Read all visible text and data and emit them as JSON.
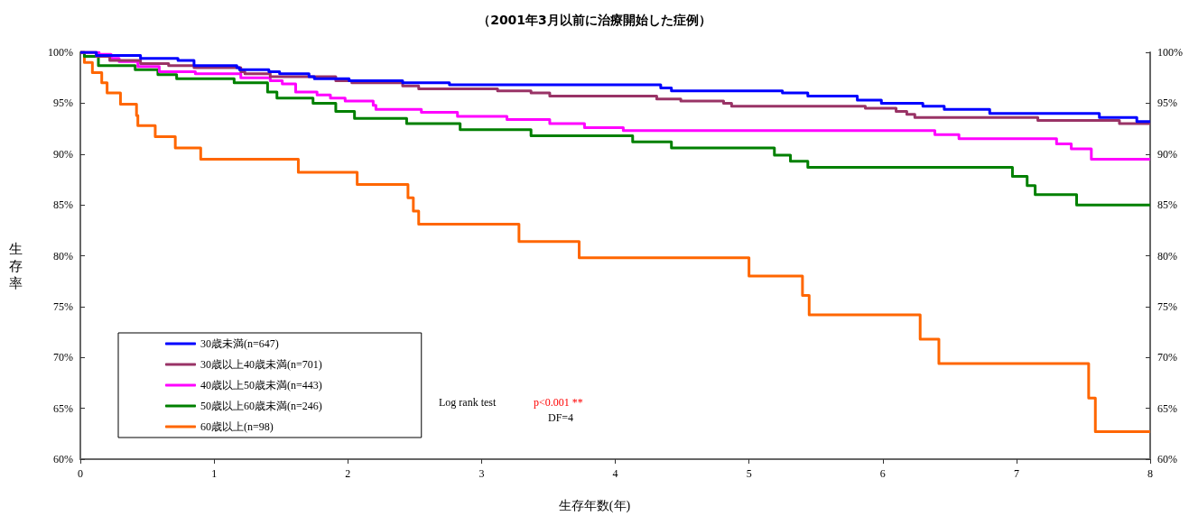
{
  "chart_data": {
    "type": "step",
    "title": "（2001年3月以前に治療開始した症例）",
    "xlabel": "生存年数(年)",
    "ylabel": "生存率",
    "xlim": [
      0,
      8
    ],
    "xticks": [
      0,
      1,
      2,
      3,
      4,
      5,
      6,
      7,
      8
    ],
    "ylim": [
      60,
      100
    ],
    "yticks": [
      {
        "value": 60,
        "label": "60%"
      },
      {
        "value": 65,
        "label": "65%"
      },
      {
        "value": 70,
        "label": "70%"
      },
      {
        "value": 75,
        "label": "75%"
      },
      {
        "value": 80,
        "label": "80%"
      },
      {
        "value": 85,
        "label": "85%"
      },
      {
        "value": 90,
        "label": "90%"
      },
      {
        "value": 95,
        "label": "95%"
      },
      {
        "value": 100,
        "label": "100%"
      }
    ],
    "y2lim": [
      60,
      100
    ],
    "y2ticks": [
      {
        "value": 60,
        "label": "60%"
      },
      {
        "value": 65,
        "label": "65%"
      },
      {
        "value": 70,
        "label": "70%"
      },
      {
        "value": 75,
        "label": "75%"
      },
      {
        "value": 80,
        "label": "80%"
      },
      {
        "value": 85,
        "label": "85%"
      },
      {
        "value": 90,
        "label": "90%"
      },
      {
        "value": 95,
        "label": "95%"
      },
      {
        "value": 100,
        "label": "100%"
      }
    ],
    "grid": false,
    "legend": "bottom left",
    "marker": "none",
    "line_style": "solid",
    "annotations": [
      "Log rank test",
      "p<0.001 **",
      "DF=4"
    ],
    "series": [
      {
        "name": "30歳未満(n=647)",
        "color": "#0000ff",
        "x": [
          0,
          0.12,
          0.45,
          0.73,
          0.85,
          1.17,
          1.19,
          1.41,
          1.49,
          1.71,
          1.75,
          2.01,
          2.41,
          2.76,
          4.34,
          4.42,
          5.25,
          5.44,
          5.81,
          5.99,
          6.3,
          6.46,
          6.8,
          7.62,
          7.9,
          8
        ],
        "values": [
          100,
          99.7,
          99.4,
          99.2,
          98.7,
          98.5,
          98.3,
          98.1,
          97.9,
          97.6,
          97.4,
          97.2,
          97,
          96.8,
          96.5,
          96.2,
          96,
          95.7,
          95.3,
          95,
          94.7,
          94.4,
          94,
          93.6,
          93.2,
          93.2
        ]
      },
      {
        "name": "30歳以上40歳未満(n=701)",
        "color": "#993366",
        "x": [
          0,
          0.12,
          0.22,
          0.45,
          0.66,
          0.85,
          1.2,
          1.23,
          1.42,
          1.91,
          2.03,
          2.41,
          2.53,
          3.12,
          3.37,
          3.51,
          4.31,
          4.49,
          4.81,
          4.87,
          5.87,
          6.1,
          6.18,
          6.24,
          7.16,
          7.77,
          8
        ],
        "values": [
          100,
          99.6,
          99.2,
          98.9,
          98.7,
          98.5,
          98.1,
          97.9,
          97.6,
          97.2,
          97,
          96.7,
          96.4,
          96.2,
          96,
          95.7,
          95.4,
          95.2,
          95,
          94.7,
          94.5,
          94.2,
          93.9,
          93.6,
          93.3,
          93,
          93
        ]
      },
      {
        "name": "40歳以上50歳未満(n=443)",
        "color": "#ff00ff",
        "x": [
          0,
          0.14,
          0.23,
          0.29,
          0.43,
          0.59,
          0.86,
          1.2,
          1.42,
          1.51,
          1.61,
          1.77,
          1.87,
          1.98,
          2.19,
          2.21,
          2.55,
          2.82,
          3.19,
          3.51,
          3.77,
          4.06,
          6.39,
          6.57,
          7.3,
          7.41,
          7.56,
          8
        ],
        "values": [
          100,
          99.8,
          99.4,
          99.1,
          98.6,
          98.1,
          97.9,
          97.5,
          97.2,
          96.9,
          96.1,
          95.8,
          95.5,
          95.2,
          94.8,
          94.4,
          94.1,
          93.7,
          93.4,
          93,
          92.6,
          92.3,
          91.9,
          91.5,
          91,
          90.5,
          89.5,
          89.5
        ]
      },
      {
        "name": "50歳以上60歳未満(n=246)",
        "color": "#008000",
        "x": [
          0,
          0.03,
          0.135,
          0.41,
          0.58,
          0.72,
          1.15,
          1.4,
          1.47,
          1.74,
          1.91,
          2.05,
          2.44,
          2.84,
          3.37,
          4.13,
          4.42,
          5.19,
          5.31,
          5.44,
          6.97,
          7.08,
          7.14,
          7.45,
          8
        ],
        "values": [
          100,
          99.6,
          98.7,
          98.3,
          97.8,
          97.4,
          97,
          96.1,
          95.5,
          95,
          94.2,
          93.5,
          93,
          92.4,
          91.8,
          91.2,
          90.6,
          89.9,
          89.3,
          88.7,
          87.8,
          86.9,
          86,
          85,
          85
        ]
      },
      {
        "name": "60歳以上(n=98)",
        "color": "#ff6600",
        "x": [
          0,
          0.03,
          0.09,
          0.16,
          0.2,
          0.3,
          0.42,
          0.43,
          0.56,
          0.71,
          0.9,
          1.63,
          2.07,
          2.45,
          2.49,
          2.53,
          3.28,
          3.73,
          5,
          5.4,
          5.45,
          6.28,
          6.42,
          7.54,
          7.59,
          8
        ],
        "values": [
          100,
          99,
          98,
          97,
          96,
          94.9,
          93.8,
          92.8,
          91.7,
          90.6,
          89.5,
          88.2,
          87,
          85.7,
          84.4,
          83.1,
          81.4,
          79.8,
          78,
          76.1,
          74.2,
          71.8,
          69.4,
          66,
          62.7,
          62.7
        ]
      }
    ]
  }
}
